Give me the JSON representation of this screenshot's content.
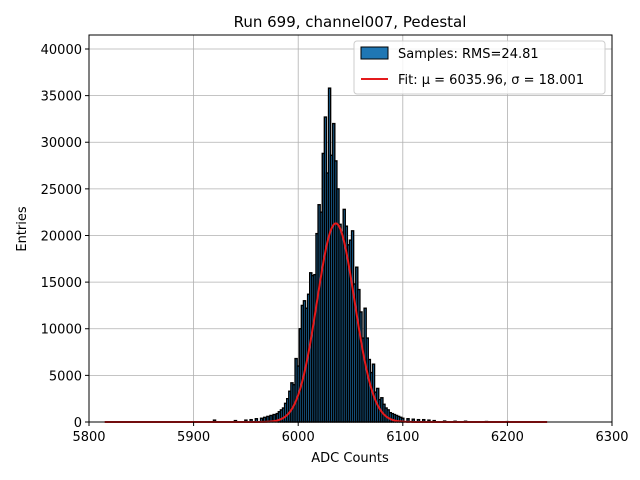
{
  "chart_data": {
    "type": "bar",
    "title": "Run 699, channel007, Pedestal",
    "xlabel": "ADC Counts",
    "ylabel": "Entries",
    "xlim": [
      5800,
      6300
    ],
    "ylim": [
      0,
      41500
    ],
    "xticks": [
      5800,
      5900,
      6000,
      6100,
      6200,
      6300
    ],
    "yticks": [
      0,
      5000,
      10000,
      15000,
      20000,
      25000,
      30000,
      35000,
      40000
    ],
    "grid": true,
    "legend_position": "top-right",
    "legend": {
      "samples_label": "Samples: RMS=24.81",
      "fit_label": "Fit: μ = 6035.96, σ = 18.001"
    },
    "fit": {
      "mu": 6035.96,
      "sigma": 18.001,
      "amplitude": 21300,
      "x_range": [
        5815,
        6238
      ]
    },
    "series": [
      {
        "name": "Samples: RMS=24.81",
        "x": [
          5920,
          5940,
          5950,
          5955,
          5960,
          5965,
          5968,
          5971,
          5974,
          5977,
          5980,
          5982,
          5984,
          5986,
          5988,
          5990,
          5992,
          5994,
          5996,
          5998,
          6000,
          6002,
          6004,
          6006,
          6008,
          6010,
          6012,
          6014,
          6016,
          6018,
          6020,
          6022,
          6024,
          6026,
          6028,
          6030,
          6032,
          6034,
          6036,
          6038,
          6040,
          6042,
          6044,
          6046,
          6048,
          6050,
          6052,
          6054,
          6056,
          6058,
          6060,
          6062,
          6064,
          6066,
          6068,
          6070,
          6072,
          6074,
          6076,
          6078,
          6080,
          6082,
          6084,
          6086,
          6088,
          6090,
          6092,
          6094,
          6096,
          6098,
          6100,
          6105,
          6110,
          6115,
          6120,
          6125,
          6130,
          6140,
          6150,
          6160,
          6180,
          6200
        ],
        "values": [
          200,
          150,
          200,
          250,
          350,
          400,
          500,
          600,
          700,
          800,
          900,
          1100,
          1300,
          1500,
          2000,
          2500,
          3300,
          4200,
          4000,
          6800,
          6000,
          10000,
          12500,
          13000,
          12200,
          13700,
          16000,
          15700,
          15800,
          20200,
          23300,
          22500,
          28800,
          32700,
          26700,
          35800,
          28600,
          32000,
          28000,
          25000,
          21200,
          20000,
          22800,
          21000,
          19000,
          19500,
          20500,
          14800,
          16600,
          14200,
          11800,
          9000,
          12200,
          9000,
          6700,
          5300,
          6200,
          3200,
          3600,
          2400,
          2600,
          1900,
          1500,
          1300,
          1000,
          900,
          800,
          700,
          600,
          500,
          400,
          350,
          300,
          250,
          250,
          200,
          150,
          100,
          80,
          80,
          50,
          40
        ]
      }
    ]
  }
}
